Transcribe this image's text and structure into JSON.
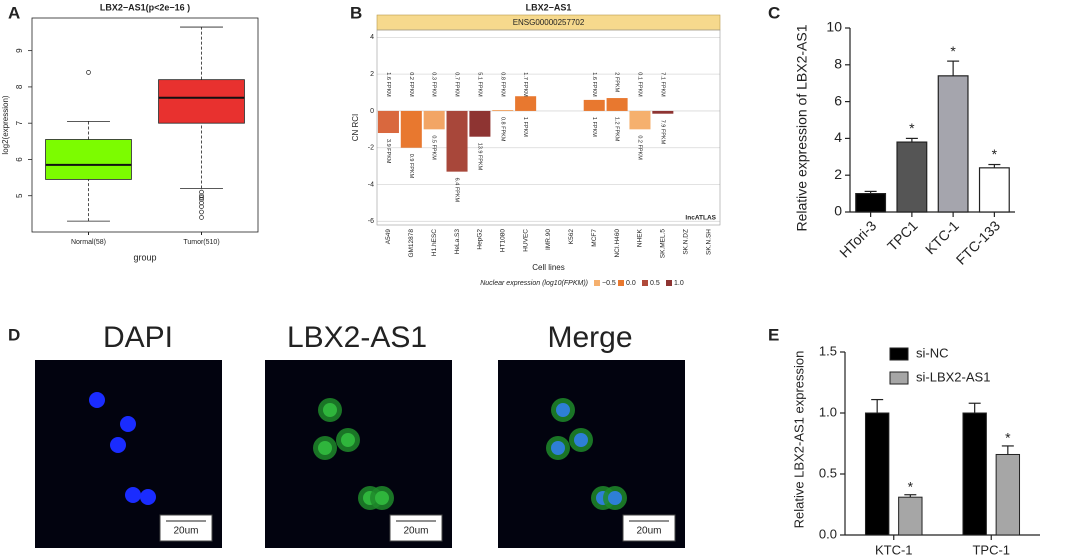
{
  "panel_labels": [
    "A",
    "B",
    "C",
    "D",
    "E"
  ],
  "chart_data": [
    {
      "type": "box",
      "title": "LBX2−AS1(p<2e−16 )",
      "x_label": "group",
      "y_label": "log2(expression)",
      "categories": [
        "Normal(58)",
        "Tumor(510)"
      ],
      "boxes": [
        {
          "color": "#7cfc00",
          "whisker_low": 4.3,
          "q1": 5.45,
          "median": 5.85,
          "q3": 6.55,
          "whisker_high": 7.05,
          "outliers": [
            8.4
          ]
        },
        {
          "color": "#e8312f",
          "whisker_low": 5.2,
          "q1": 7.0,
          "median": 7.7,
          "q3": 8.2,
          "whisker_high": 9.65,
          "outliers": [
            5.1,
            5.0,
            4.95,
            4.9,
            4.8,
            4.7,
            4.55,
            4.4
          ]
        }
      ],
      "ylim": [
        4.0,
        9.9
      ],
      "yticks": [
        5,
        6,
        7,
        8,
        9
      ]
    },
    {
      "type": "bar",
      "title": "LBX2−AS1",
      "subtitle": "ENSG00000257702",
      "x_label": "Cell lines",
      "y_label": "CN RCI",
      "annotation": "lncATLAS",
      "categories": [
        "A549",
        "GM12878",
        "H1.hESC",
        "HeLa.S3",
        "HepG2",
        "HT1080",
        "HUVEC",
        "IMR.90",
        "K562",
        "MCF7",
        "NCI.H460",
        "NHEK",
        "SK.MEL.5",
        "SK.N.DZ",
        "SK.N.SH"
      ],
      "values": [
        -1.2,
        -2.0,
        -1.0,
        -3.3,
        -1.4,
        0.05,
        0.8,
        null,
        null,
        0.6,
        0.7,
        -1.0,
        -0.15,
        null,
        null
      ],
      "colors": [
        "#d9683e",
        "#e8782f",
        "#f2a565",
        "#a8473a",
        "#8e3432",
        "#f2a565",
        "#e8782f",
        null,
        null,
        "#e8782f",
        "#e8782f",
        "#f5b06e",
        "#8e3432",
        null,
        null
      ],
      "nuclear_labels": [
        "1.6 FPKM",
        "0.2 FPKM",
        "0.3 FPKM",
        "0.7 FPKM",
        "5.1 FPKM",
        "0.8 FPKM",
        "1.7 FPKM",
        null,
        null,
        "1.6 FPKM",
        "2 FPKM",
        "0.1 FPKM",
        "7.1 FPKM",
        null,
        null
      ],
      "cytoplasm_labels": [
        "3.9 FPKM",
        "0.9 FPKM",
        "0.5 FPKM",
        "6.4 FPKM",
        "13.9 FPKM",
        "0.8 FPKM",
        "1 FPKM",
        null,
        null,
        "1 FPKM",
        "1.2 FPKM",
        "0.2 FPKM",
        "7.9 FPKM",
        null,
        null
      ],
      "ylim": [
        -6.2,
        4.4
      ],
      "yticks": [
        -6,
        -4,
        -2,
        0,
        2,
        4
      ],
      "grid": true,
      "legend": {
        "title": "Nuclear expression (log10(FPKM))",
        "entries": [
          {
            "label": "−0.5",
            "color": "#f5b06e"
          },
          {
            "label": "0.0",
            "color": "#e8782f"
          },
          {
            "label": "0.5",
            "color": "#b04a3a"
          },
          {
            "label": "1.0",
            "color": "#8e3432"
          }
        ]
      }
    },
    {
      "type": "bar_error",
      "y_label": "Relative expression of LBX2-AS1",
      "categories": [
        "HTori-3",
        "TPC1",
        "KTC-1",
        "FTC-133"
      ],
      "values": [
        1.0,
        3.8,
        7.4,
        2.4
      ],
      "errors": [
        0.12,
        0.2,
        0.8,
        0.18
      ],
      "colors": [
        "#000000",
        "#555555",
        "#a5a5ad",
        "#ffffff"
      ],
      "significance": [
        null,
        "*",
        "*",
        "*"
      ],
      "ylim": [
        0,
        10
      ],
      "yticks": [
        0,
        2,
        4,
        6,
        8,
        10
      ]
    },
    {
      "type": "grouped_bar",
      "y_label": "Relative  LBX2-AS1 expression",
      "categories": [
        "KTC-1",
        "TPC-1"
      ],
      "series": [
        {
          "name": "si-NC",
          "color": "#000000",
          "values": [
            1.0,
            1.0
          ],
          "errors": [
            0.11,
            0.08
          ]
        },
        {
          "name": "si-LBX2-AS1",
          "color": "#a6a6a6",
          "values": [
            0.31,
            0.66
          ],
          "errors": [
            0.02,
            0.07
          ],
          "significance": [
            "*",
            "*"
          ]
        }
      ],
      "ylim": [
        0,
        1.5
      ],
      "yticks": [
        {
          "value": 0,
          "label": "0.0"
        },
        {
          "value": 0.5,
          "label": "0.5"
        },
        {
          "value": 1,
          "label": "1.0"
        },
        {
          "value": 1.5,
          "label": "1.5"
        }
      ],
      "legend": "upper-left"
    }
  ],
  "microscopy": {
    "titles": [
      "DAPI",
      "LBX2-AS1",
      "Merge"
    ],
    "scale_bars": [
      "20um",
      "20um",
      "20um"
    ]
  }
}
